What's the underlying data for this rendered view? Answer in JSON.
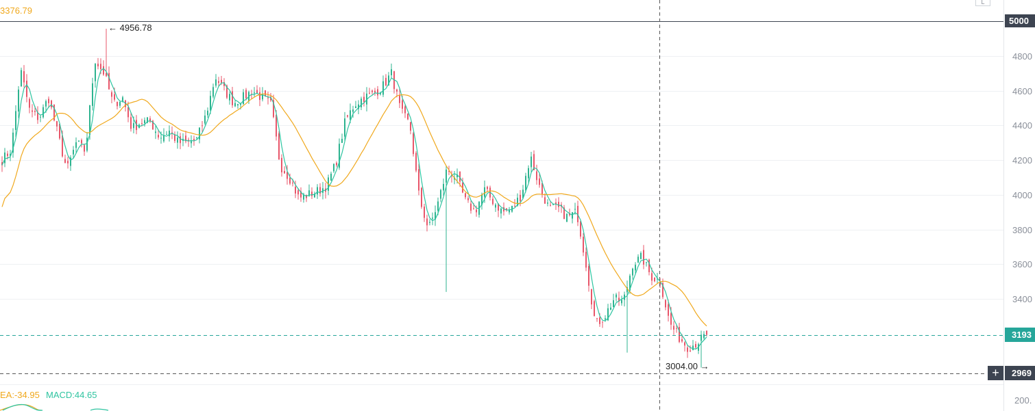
{
  "colors": {
    "up": "#2db38f",
    "down": "#e8566a",
    "ma_short": "#2ec4a0",
    "ma_long": "#f0a81c",
    "grid": "#eef0f3",
    "axis_text": "#8a8f99",
    "last_price": "#26a69a",
    "crosshair": "#555555",
    "axis_tag_dark": "#3d4451"
  },
  "header": {
    "ma_value": "3376.79"
  },
  "indicator": {
    "dea_text": "EA:-34.95",
    "macd_text": "MACD:44.65",
    "axis_value": "200."
  },
  "price_axis": {
    "ticks": [
      "4800",
      "4600",
      "4400",
      "4200",
      "4000",
      "3800",
      "3600",
      "3400"
    ],
    "tick_values": [
      4800,
      4600,
      4400,
      4200,
      4000,
      3800,
      3600,
      3400
    ],
    "top_tag": "5000",
    "top_tag_value": 5000,
    "last_price_tag": "3193",
    "last_price_value": 3193,
    "crosshair_tag": "2969",
    "crosshair_value": 2969
  },
  "annotations": {
    "high_label": "← 4956.78",
    "high_value": 4956.78,
    "low_label": "3004.00 →",
    "low_value": 3004.0
  },
  "toolbar": {
    "scale_button_label": "L",
    "crosshair_add_symbol": "+"
  },
  "chart_data": {
    "type": "candlestick",
    "title": "",
    "y_range": [
      2950,
      5060
    ],
    "y_ticks": [
      3400,
      3600,
      3800,
      4000,
      4200,
      4400,
      4600,
      4800
    ],
    "high": 4956.78,
    "low": 3004.0,
    "last": 3193,
    "crosshair_price": 2969,
    "series": [
      {
        "kind": "close_path",
        "approx_close_keypoints": [
          4200,
          4260,
          4720,
          4480,
          4440,
          4560,
          4350,
          4140,
          4300,
          4250,
          4780,
          4700,
          4520,
          4560,
          4380,
          4420,
          4420,
          4330,
          4370,
          4300,
          4300,
          4320,
          4460,
          4680,
          4600,
          4530,
          4560,
          4600,
          4560,
          4520,
          4170,
          4100,
          3980,
          4000,
          4020,
          4050,
          4180,
          4420,
          4520,
          4560,
          4580,
          4620,
          4700,
          4480,
          4400,
          3980,
          3800,
          3950,
          4150,
          4100,
          3960,
          3900,
          4030,
          3960,
          3900,
          3920,
          4000,
          4220,
          4040,
          3920,
          3920,
          3870,
          3900,
          3600,
          3250,
          3300,
          3400,
          3380,
          3600,
          3640,
          3530,
          3500,
          3260,
          3180,
          3120,
          3150,
          3193
        ]
      },
      {
        "name": "",
        "kind": "moving_average",
        "color_key": "ma_short"
      },
      {
        "name": "",
        "kind": "moving_average",
        "color_key": "ma_long"
      }
    ]
  }
}
